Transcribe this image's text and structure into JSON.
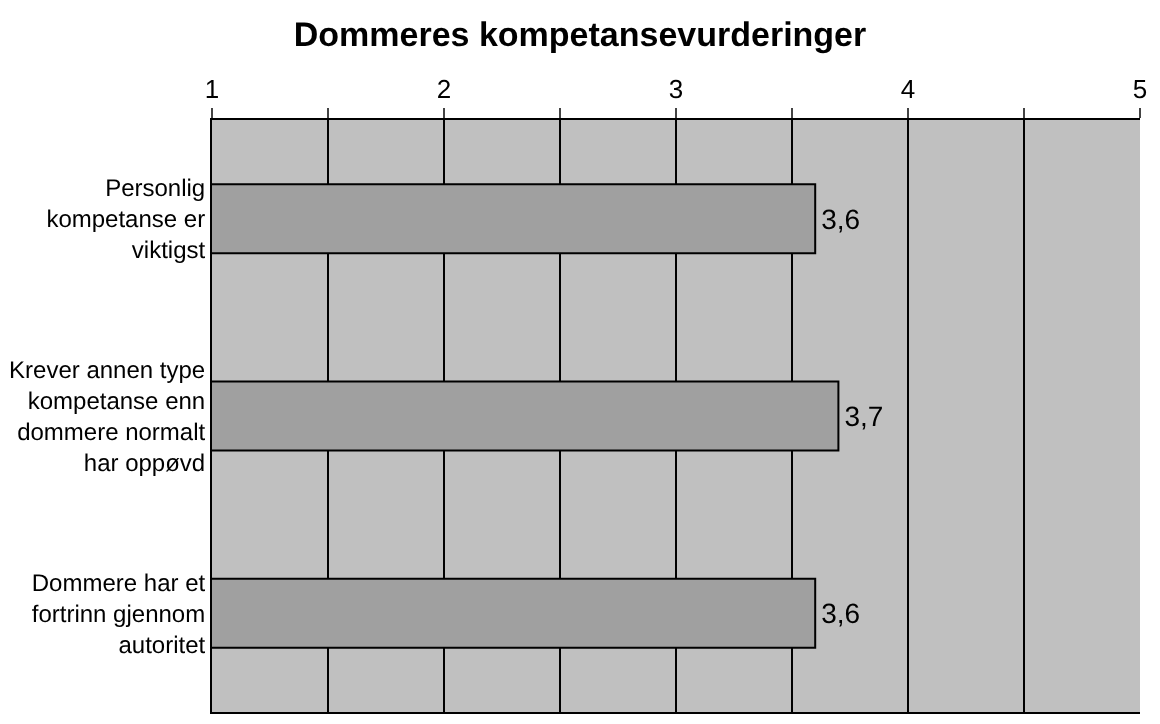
{
  "chart_data": {
    "type": "bar",
    "orientation": "horizontal",
    "title": "Dommeres kompetansevurderinger",
    "categories": [
      "Personlig kompetanse er viktigst",
      "Krever annen type kompetanse enn dommere normalt har oppøvd",
      "Dommere har et fortrinn gjennom autoritet"
    ],
    "values": [
      3.6,
      3.7,
      3.6
    ],
    "value_labels": [
      "3,6",
      "3,7",
      "3,6"
    ],
    "color": "#a0a0a0",
    "xlim": [
      1,
      5
    ],
    "xticks": [
      1,
      {
        "value": 1.5,
        "label": null
      },
      2,
      {
        "value": 2.5,
        "label": null
      },
      3,
      {
        "value": 3.5,
        "label": null
      },
      4,
      {
        "value": 4.5,
        "label": null
      },
      5
    ],
    "grid": "x",
    "legend": false
  }
}
